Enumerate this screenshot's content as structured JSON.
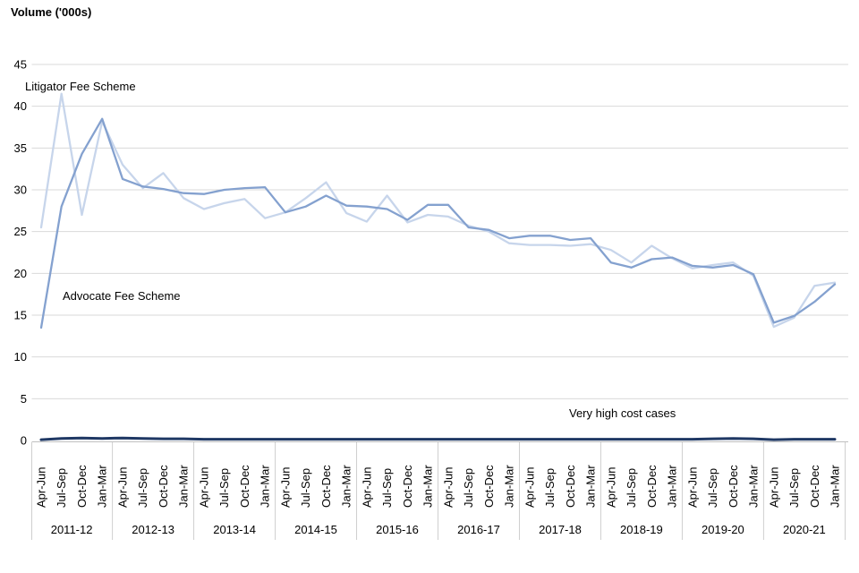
{
  "chart_data": {
    "type": "line",
    "title": "Volume ('000s)",
    "xlabel": "",
    "ylabel": "Volume ('000s)",
    "ylim": [
      0,
      45
    ],
    "yticks": [
      0,
      5,
      10,
      15,
      20,
      25,
      30,
      35,
      40,
      45
    ],
    "grid": "horizontal",
    "gridline_color": "#d9d9d9",
    "axis_color": "#bfbfbf",
    "separator_color": "#cfcfcf",
    "legend_position": "inline-annotations",
    "quarter_labels": [
      "Apr-Jun",
      "Jul-Sep",
      "Oct-Dec",
      "Jan-Mar"
    ],
    "year_groups": [
      "2011-12",
      "2012-13",
      "2013-14",
      "2014-15",
      "2015-16",
      "2016-17",
      "2017-18",
      "2018-19",
      "2019-20",
      "2020-21"
    ],
    "series": [
      {
        "name": "Litigator Fee Scheme",
        "color": "#c7d5eb",
        "values": [
          25.5,
          41.5,
          27.0,
          38.2,
          33.0,
          30.2,
          32.0,
          29.0,
          27.7,
          28.4,
          28.9,
          26.6,
          27.3,
          29.0,
          30.9,
          27.2,
          26.2,
          29.3,
          26.1,
          27.0,
          26.8,
          25.7,
          25.0,
          23.6,
          23.4,
          23.4,
          23.3,
          23.5,
          22.8,
          21.3,
          23.3,
          21.8,
          20.6,
          21.0,
          21.3,
          19.7,
          13.6,
          14.7,
          18.5,
          18.9
        ]
      },
      {
        "name": "Advocate Fee Scheme",
        "color": "#84a1cf",
        "values": [
          13.5,
          28.0,
          34.3,
          38.5,
          31.3,
          30.4,
          30.1,
          29.6,
          29.5,
          30.0,
          30.2,
          30.3,
          27.3,
          28.0,
          29.3,
          28.1,
          28.0,
          27.7,
          26.4,
          28.2,
          28.2,
          25.5,
          25.2,
          24.2,
          24.5,
          24.5,
          24.0,
          24.2,
          21.3,
          20.7,
          21.7,
          21.9,
          20.9,
          20.7,
          21.0,
          19.9,
          14.1,
          14.9,
          16.6,
          18.7
        ]
      },
      {
        "name": "Very high cost cases",
        "color": "#1f3864",
        "values": [
          0.1,
          0.25,
          0.3,
          0.25,
          0.3,
          0.25,
          0.2,
          0.2,
          0.15,
          0.15,
          0.15,
          0.15,
          0.15,
          0.15,
          0.15,
          0.15,
          0.15,
          0.15,
          0.15,
          0.15,
          0.15,
          0.15,
          0.15,
          0.15,
          0.15,
          0.15,
          0.15,
          0.15,
          0.15,
          0.15,
          0.15,
          0.15,
          0.15,
          0.2,
          0.25,
          0.2,
          0.1,
          0.15,
          0.15,
          0.15
        ]
      }
    ],
    "annotations": [
      {
        "text": "Litigator Fee Scheme"
      },
      {
        "text": "Advocate Fee Scheme"
      },
      {
        "text": "Very high cost cases"
      }
    ]
  }
}
